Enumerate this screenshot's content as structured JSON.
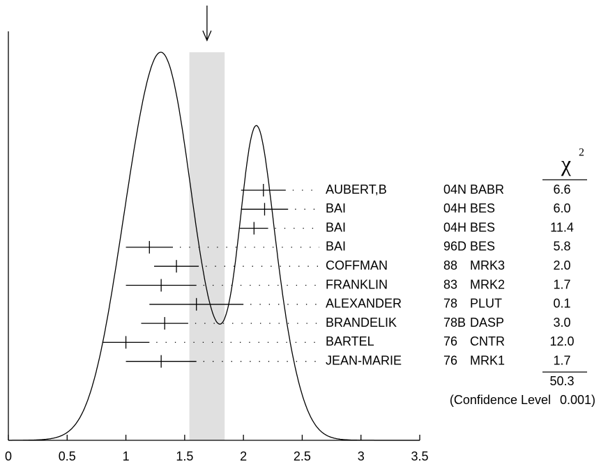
{
  "chart_data": {
    "type": "ideogram",
    "xlim": [
      0,
      3.5
    ],
    "xticks": [
      0,
      0.5,
      1,
      1.5,
      2,
      2.5,
      3,
      3.5
    ],
    "average": {
      "value": 1.69,
      "error": 0.15
    },
    "chi2_header": "χ",
    "chi2_header_power": "2",
    "measurements": [
      {
        "name": "AUBERT,B",
        "year": "04N",
        "experiment": "BABR",
        "value": 2.17,
        "error": 0.19,
        "chi2": "6.6"
      },
      {
        "name": "BAI",
        "year": "04H",
        "experiment": "BES",
        "value": 2.18,
        "error": 0.2,
        "chi2": "6.0"
      },
      {
        "name": "BAI",
        "year": "04H",
        "experiment": "BES",
        "value": 2.09,
        "error": 0.12,
        "chi2": "11.4"
      },
      {
        "name": "BAI",
        "year": "96D",
        "experiment": "BES",
        "value": 1.2,
        "error": 0.2,
        "chi2": "5.8"
      },
      {
        "name": "COFFMAN",
        "year": "88",
        "experiment": "MRK3",
        "value": 1.43,
        "error": 0.19,
        "chi2": "2.0"
      },
      {
        "name": "FRANKLIN",
        "year": "83",
        "experiment": "MRK2",
        "value": 1.3,
        "error": 0.3,
        "chi2": "1.7"
      },
      {
        "name": "ALEXANDER",
        "year": "78",
        "experiment": "PLUT",
        "value": 1.6,
        "error": 0.4,
        "chi2": "0.1"
      },
      {
        "name": "BRANDELIK",
        "year": "78B",
        "experiment": "DASP",
        "value": 1.33,
        "error": 0.2,
        "chi2": "3.0"
      },
      {
        "name": "BARTEL",
        "year": "76",
        "experiment": "CNTR",
        "value": 1.0,
        "error": 0.2,
        "chi2": "12.0"
      },
      {
        "name": "JEAN-MARIE",
        "year": "76",
        "experiment": "MRK1",
        "value": 1.3,
        "error": 0.3,
        "chi2": "1.7"
      }
    ],
    "chi2_total": "50.3",
    "confidence_level_label": "(Confidence Level",
    "confidence_level": "0.001)"
  }
}
